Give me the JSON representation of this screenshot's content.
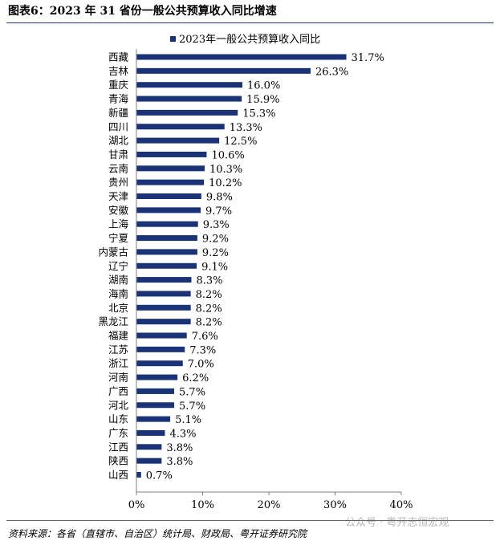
{
  "figure": {
    "title": "图表6：2023 年 31 省份一般公共预算收入同比增速",
    "source": "资料来源：各省（直辖市、自治区）统计局、财政局、粤开证券研究院",
    "watermark": "公众号 · 粤开志恒宏观"
  },
  "chart_data": {
    "type": "bar",
    "orientation": "horizontal",
    "categories": [
      "西藏",
      "吉林",
      "重庆",
      "青海",
      "新疆",
      "四川",
      "湖北",
      "甘肃",
      "云南",
      "贵州",
      "天津",
      "安徽",
      "上海",
      "宁夏",
      "内蒙古",
      "辽宁",
      "湖南",
      "海南",
      "北京",
      "黑龙江",
      "福建",
      "江苏",
      "浙江",
      "河南",
      "广西",
      "河北",
      "山东",
      "广东",
      "江西",
      "陕西",
      "山西"
    ],
    "series": [
      {
        "name": "2023年一般公共预算收入同比",
        "values": [
          31.7,
          26.3,
          16.0,
          15.9,
          15.3,
          13.3,
          12.5,
          10.6,
          10.3,
          10.2,
          9.8,
          9.7,
          9.3,
          9.2,
          9.2,
          9.1,
          8.3,
          8.2,
          8.2,
          8.2,
          7.6,
          7.3,
          7.0,
          6.2,
          5.7,
          5.7,
          5.1,
          4.3,
          3.8,
          3.8,
          0.7
        ],
        "labels": [
          "31.7%",
          "26.3%",
          "16.0%",
          "15.9%",
          "15.3%",
          "13.3%",
          "12.5%",
          "10.6%",
          "10.3%",
          "10.2%",
          "9.8%",
          "9.7%",
          "9.3%",
          "9.2%",
          "9.2%",
          "9.1%",
          "8.3%",
          "8.2%",
          "8.2%",
          "8.2%",
          "7.6%",
          "7.3%",
          "7.0%",
          "6.2%",
          "5.7%",
          "5.7%",
          "5.1%",
          "4.3%",
          "3.8%",
          "3.8%",
          "0.7%"
        ],
        "color": "#1a3276"
      }
    ],
    "xlim": [
      0,
      40
    ],
    "xticks": [
      0,
      10,
      20,
      30,
      40
    ],
    "xtick_labels": [
      "0%",
      "10%",
      "20%",
      "30%",
      "40%"
    ],
    "legend": "top",
    "grid": false
  }
}
